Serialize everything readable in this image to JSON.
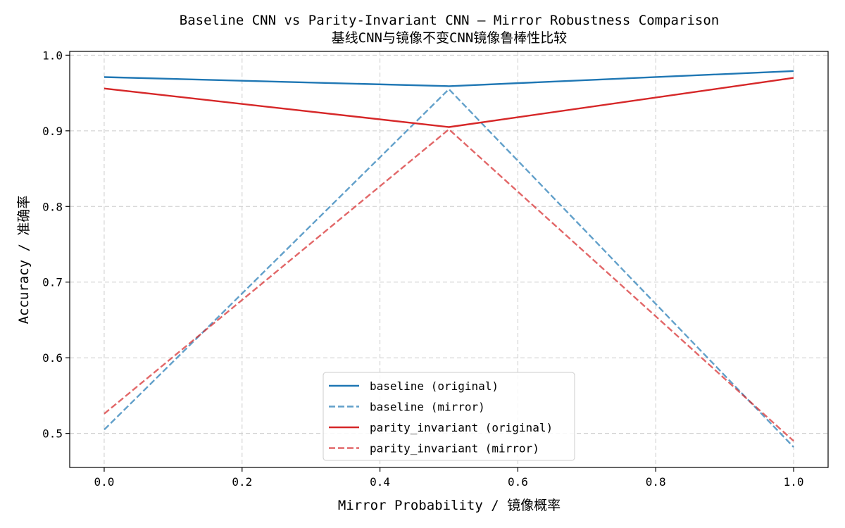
{
  "chart_data": {
    "type": "line",
    "title": "Baseline CNN vs Parity-Invariant CNN — Mirror Robustness Comparison",
    "subtitle": "基线CNN与镜像不变CNN镜像鲁棒性比较",
    "xlabel": "Mirror Probability / 镜像概率",
    "ylabel": "Accuracy / 准确率",
    "xlim": [
      -0.05,
      1.05
    ],
    "ylim": [
      0.455,
      1.005
    ],
    "xticks": [
      0.0,
      0.2,
      0.4,
      0.6,
      0.8,
      1.0
    ],
    "xtick_labels": [
      "0.0",
      "0.2",
      "0.4",
      "0.6",
      "0.8",
      "1.0"
    ],
    "yticks": [
      0.5,
      0.6,
      0.7,
      0.8,
      0.9,
      1.0
    ],
    "ytick_labels": [
      "0.5",
      "0.6",
      "0.7",
      "0.8",
      "0.9",
      "1.0"
    ],
    "grid": true,
    "legend_position": "lower-center",
    "x": [
      0.0,
      0.5,
      1.0
    ],
    "series": [
      {
        "name": "baseline (original)",
        "values": [
          0.971,
          0.959,
          0.979
        ],
        "color": "#1f77b4",
        "style": "solid"
      },
      {
        "name": "baseline (mirror)",
        "values": [
          0.505,
          0.955,
          0.482
        ],
        "color": "#1f77b4",
        "style": "dashed"
      },
      {
        "name": "parity_invariant (original)",
        "values": [
          0.956,
          0.905,
          0.97
        ],
        "color": "#d62728",
        "style": "solid"
      },
      {
        "name": "parity_invariant (mirror)",
        "values": [
          0.526,
          0.902,
          0.49
        ],
        "color": "#d62728",
        "style": "dashed"
      }
    ]
  }
}
